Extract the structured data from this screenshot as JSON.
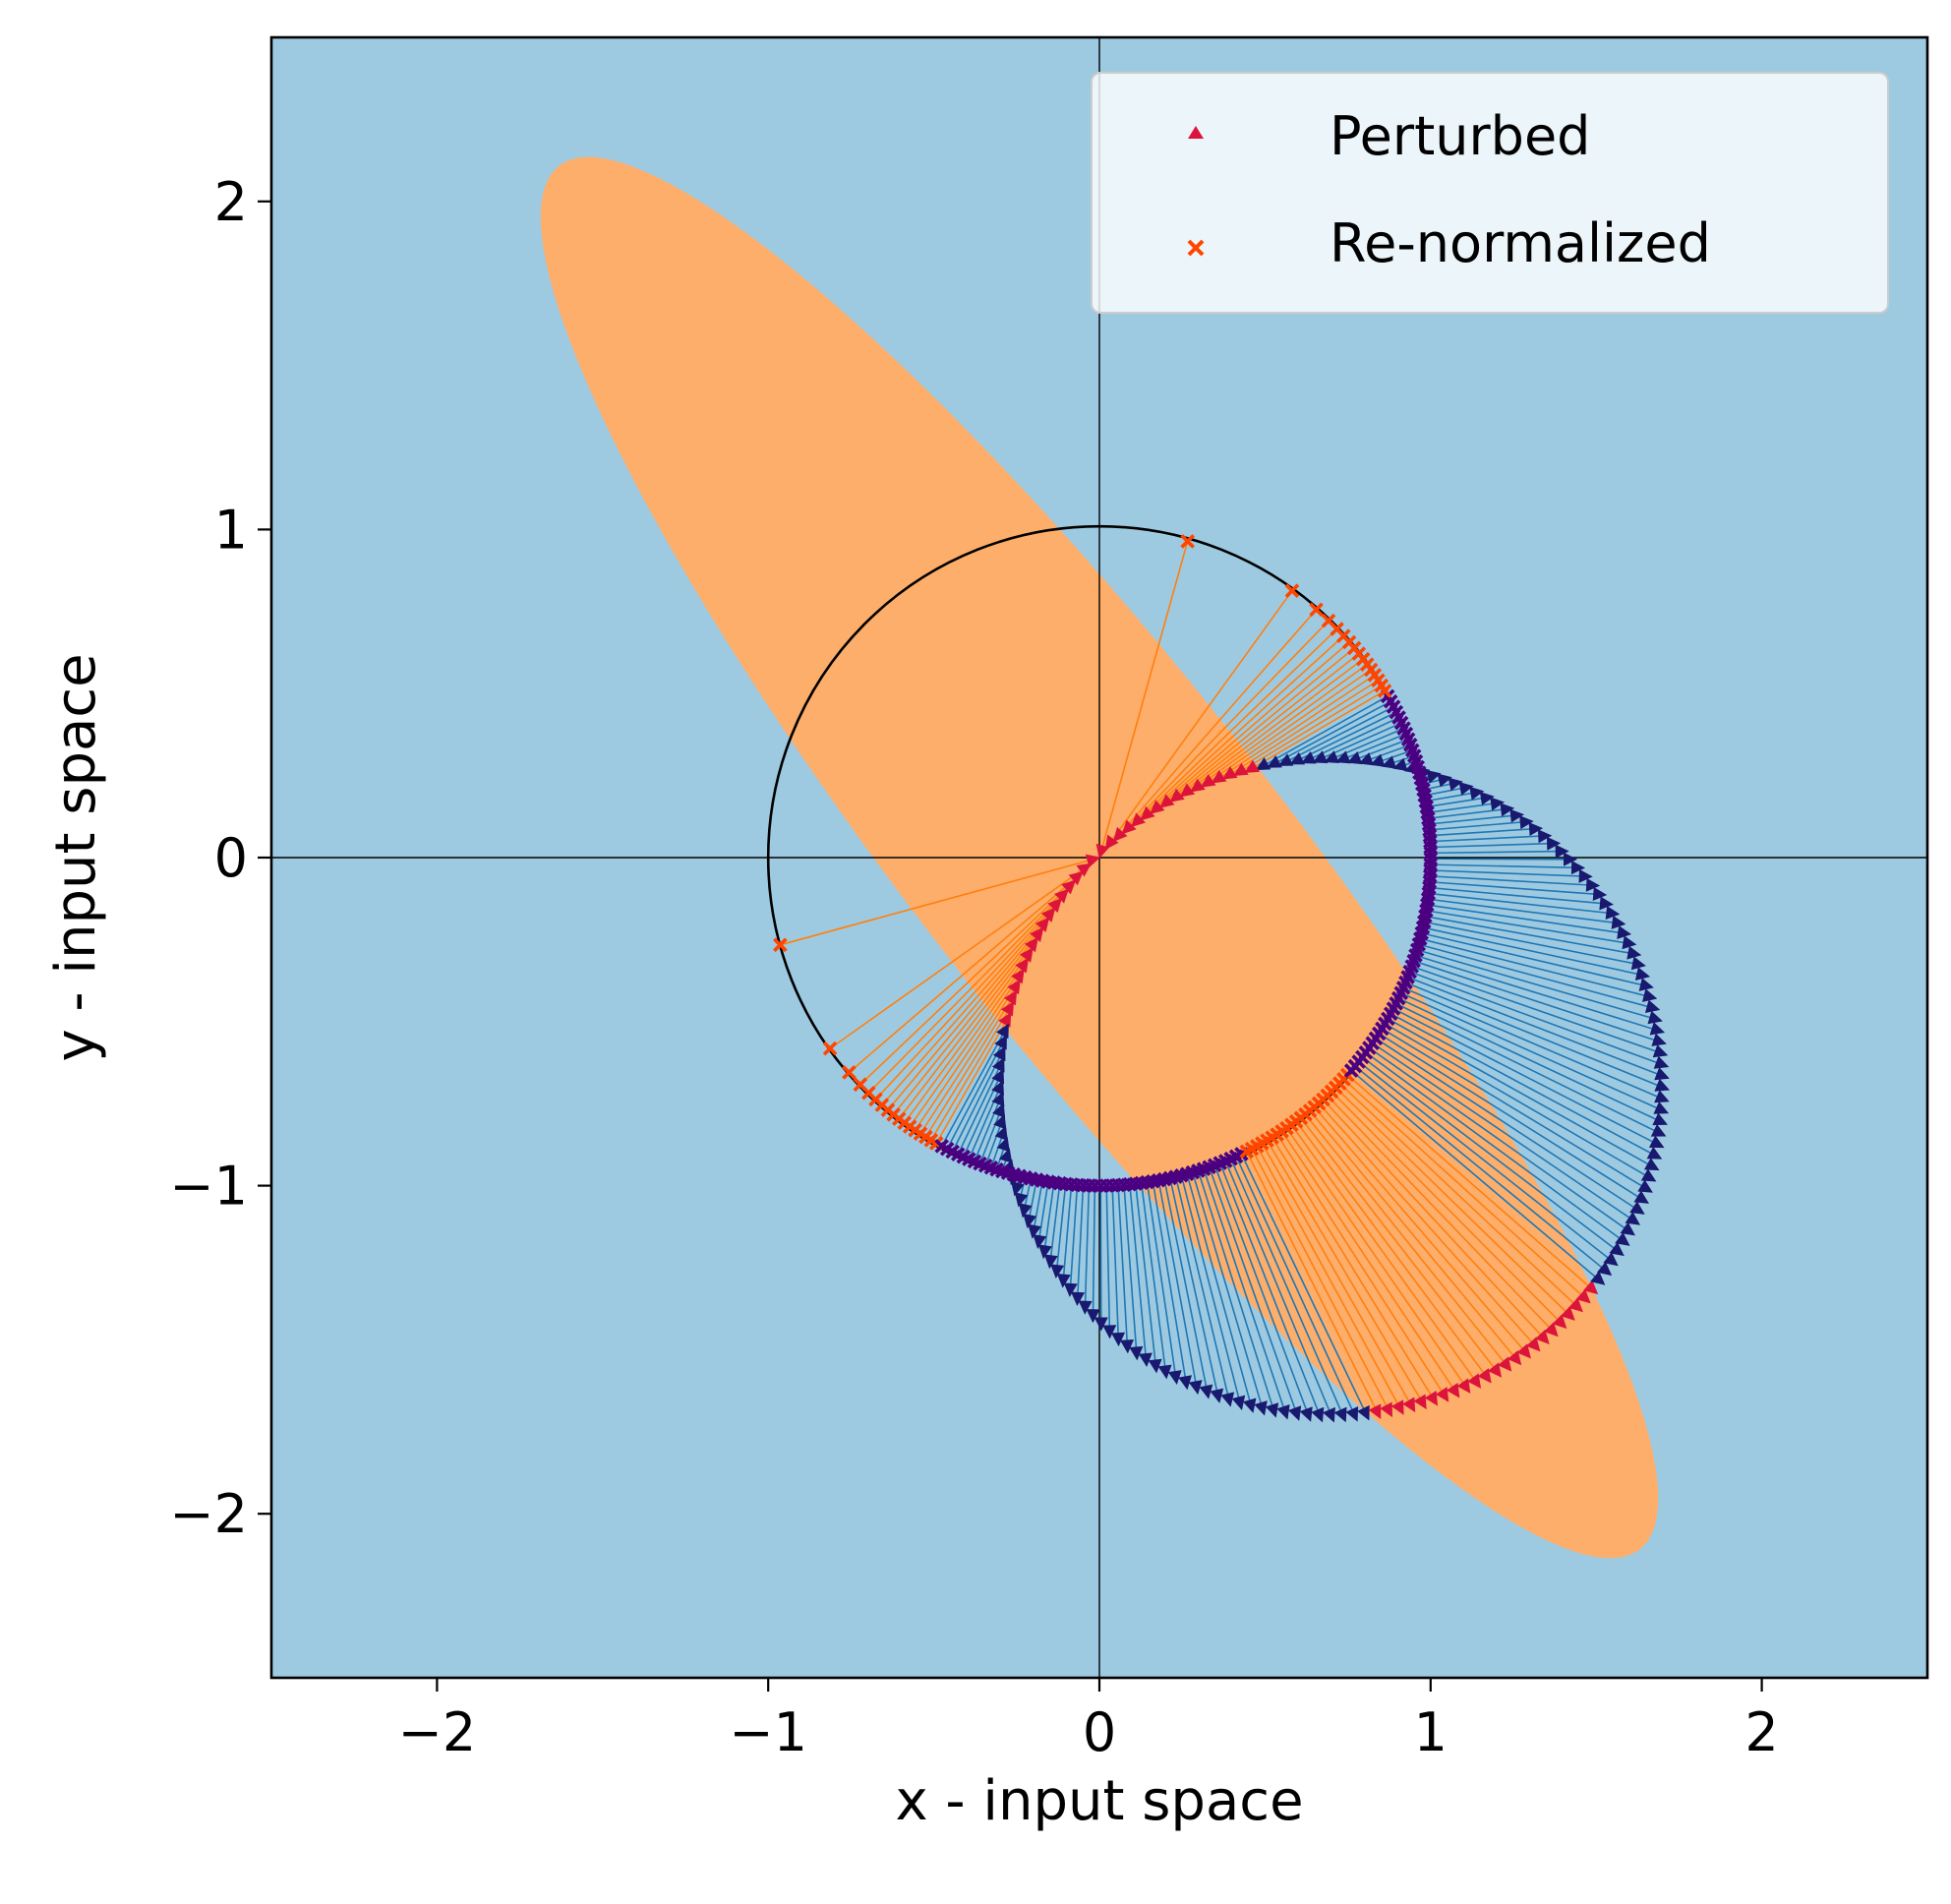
{
  "chart_data": {
    "type": "scatter",
    "title": "",
    "xlabel": "x - input space",
    "ylabel": "y - input space",
    "xlim": [
      -2.5,
      2.5
    ],
    "ylim": [
      -2.5,
      2.5
    ],
    "xticks": [
      -2,
      -1,
      0,
      1,
      2
    ],
    "yticks": [
      -2,
      -1,
      0,
      1,
      2
    ],
    "xtick_labels": [
      "−2",
      "−1",
      "0",
      "1",
      "2"
    ],
    "ytick_labels": [
      "−2",
      "−1",
      "0",
      "1",
      "2"
    ],
    "grid": false,
    "background_color": "#9ecae1",
    "region_color": "#fdae6b",
    "region_ellipse": {
      "center": [
        0,
        0
      ],
      "semi_major": 2.65,
      "semi_minor": 0.55,
      "angle_deg": -52
    },
    "reference_circle": {
      "center": [
        0,
        0
      ],
      "radius": 1
    },
    "perturbed_circle": {
      "center": [
        0.7,
        -0.7
      ],
      "radius": 1.0
    },
    "reference_lines": {
      "x": 0,
      "y": 0
    },
    "n_points": 180,
    "series": [
      {
        "name": "Perturbed",
        "marker": "triangle",
        "color": "#dc143c",
        "color_in_region": "#dc143c",
        "color_outside": "#191970"
      },
      {
        "name": "Re-normalized",
        "marker": "x",
        "color": "#ff4500",
        "color_in_region": "#ff4500",
        "color_outside": "#4b0082"
      }
    ],
    "connector_colors": {
      "in_region": "#ff7f0e",
      "outside": "#1f77b4"
    },
    "legend_position": "upper right"
  }
}
